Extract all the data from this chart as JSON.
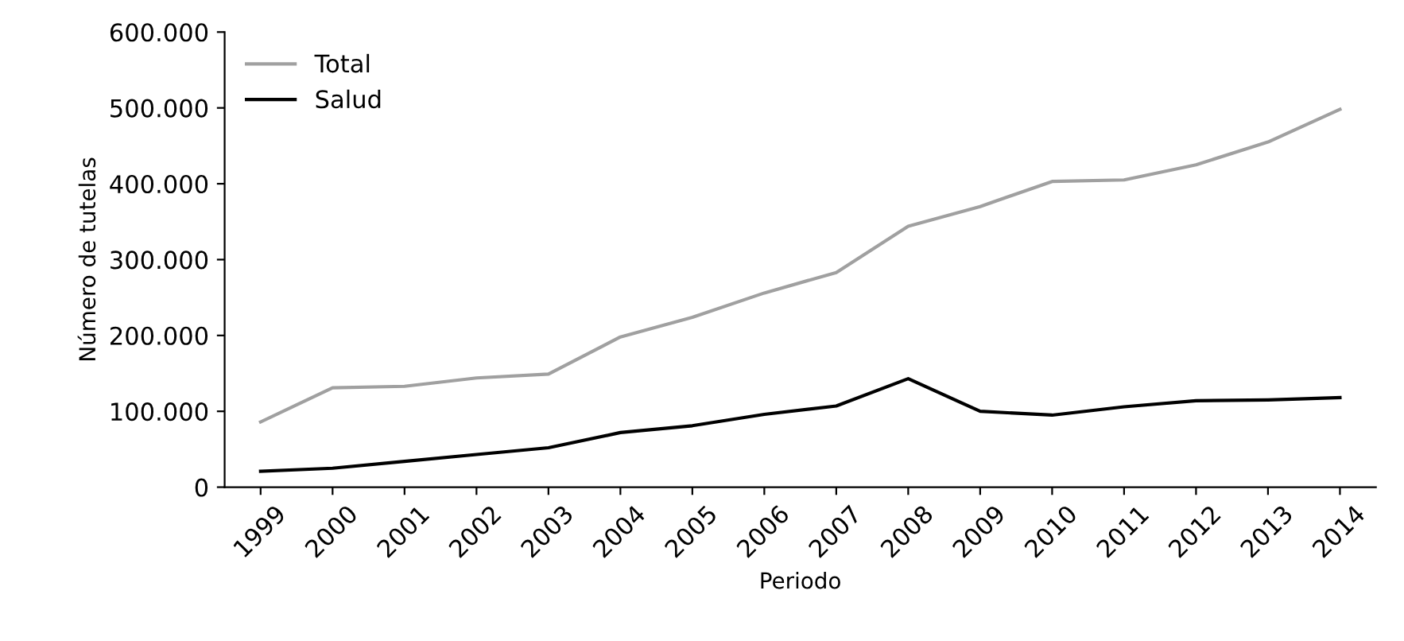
{
  "chart_data": {
    "type": "line",
    "xlabel": "Periodo",
    "ylabel": "Número de tutelas",
    "categories": [
      "1999",
      "2000",
      "2001",
      "2002",
      "2003",
      "2004",
      "2005",
      "2006",
      "2007",
      "2008",
      "2009",
      "2010",
      "2011",
      "2012",
      "2013",
      "2014"
    ],
    "series": [
      {
        "name": "Total",
        "color": "#a0a0a0",
        "values": [
          86000,
          131000,
          133000,
          144000,
          149000,
          198000,
          224000,
          256000,
          283000,
          344000,
          370000,
          403000,
          405000,
          425000,
          455000,
          498000
        ]
      },
      {
        "name": "Salud",
        "color": "#000000",
        "values": [
          21000,
          25000,
          34000,
          43000,
          52000,
          72000,
          81000,
          96000,
          107000,
          143000,
          100000,
          95000,
          106000,
          114000,
          115000,
          118000
        ]
      }
    ],
    "ylim": [
      0,
      600000
    ],
    "yticks": [
      {
        "value": 0,
        "label": "0"
      },
      {
        "value": 100000,
        "label": "100.000"
      },
      {
        "value": 200000,
        "label": "200.000"
      },
      {
        "value": 300000,
        "label": "300.000"
      },
      {
        "value": 400000,
        "label": "400.000"
      },
      {
        "value": 500000,
        "label": "500.000"
      },
      {
        "value": 600000,
        "label": "600.000"
      }
    ],
    "grid": false,
    "legend": "top left",
    "marker": "none",
    "line_style": "solid"
  }
}
